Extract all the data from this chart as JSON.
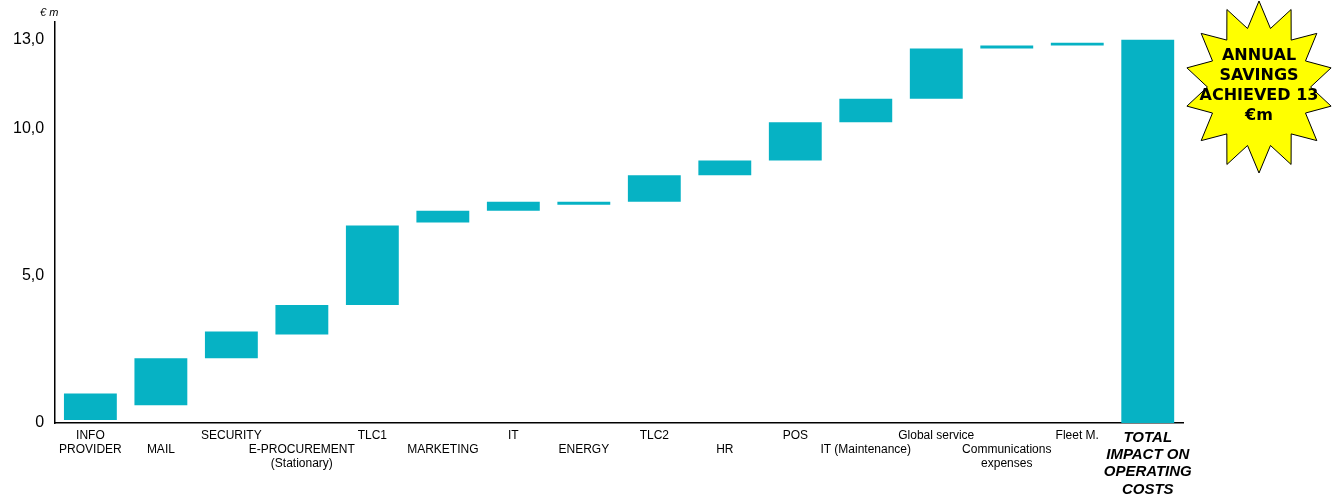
{
  "chart_data": {
    "type": "bar",
    "ylabel": "€ m",
    "categories": [
      "INFO PROVIDER",
      "MAIL",
      "SECURITY",
      "E-PROCUREMENT (Stationary)",
      "TLC1",
      "MARKETING",
      "IT",
      "ENERGY",
      "TLC2",
      "HR",
      "POS",
      "IT (Maintenance)",
      "Global service",
      "Communications expenses",
      "Fleet M.",
      "TOTAL IMPACT ON OPERATING COSTS"
    ],
    "base": [
      0.1,
      0.6,
      2.2,
      3.0,
      4.0,
      6.8,
      7.2,
      7.4,
      7.5,
      8.4,
      8.9,
      10.2,
      11.0,
      12.7,
      12.8,
      0
    ],
    "values": [
      0.9,
      1.6,
      0.9,
      1.0,
      2.7,
      0.4,
      0.3,
      0.1,
      0.9,
      0.5,
      1.3,
      0.8,
      1.7,
      0.1,
      0.1,
      13
    ],
    "color": "#06b2c4",
    "ylim": [
      0,
      13.6
    ],
    "yticks": [
      0,
      {
        "value": 5,
        "label": "5,0"
      },
      {
        "value": 10,
        "label": "10,0"
      },
      {
        "value": 13,
        "label": "13,0"
      }
    ],
    "grid": false,
    "legend": false,
    "annotations": [
      "ANNUAL SAVINGS ACHIEVED 13 €m"
    ]
  }
}
